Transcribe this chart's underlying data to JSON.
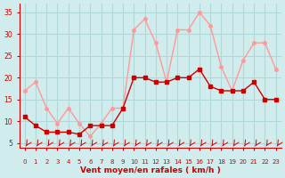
{
  "x": [
    0,
    1,
    2,
    3,
    4,
    5,
    6,
    7,
    8,
    9,
    10,
    11,
    12,
    13,
    14,
    15,
    16,
    17,
    18,
    19,
    20,
    21,
    22,
    23
  ],
  "y_avg": [
    11,
    9,
    7.5,
    7.5,
    7.5,
    7,
    9,
    9,
    9,
    13,
    20,
    20,
    19,
    19,
    20,
    20,
    22,
    18,
    17,
    17,
    17,
    19,
    15,
    15
  ],
  "y_gust": [
    17,
    19,
    13,
    9.5,
    13,
    9.5,
    6.5,
    9.5,
    13,
    13,
    31,
    33.5,
    28,
    19,
    31,
    31,
    35,
    32,
    22.5,
    17,
    24,
    28,
    28,
    22
  ],
  "bg_color": "#d0ecec",
  "grid_color": "#b0d8d8",
  "line_avg_color": "#cc0000",
  "line_gust_color": "#ff9999",
  "marker_avg_color": "#cc0000",
  "marker_gust_color": "#ff9999",
  "xlabel": "Vent moyen/en rafales ( km/h )",
  "xlabel_color": "#cc0000",
  "tick_color": "#cc0000",
  "arrow_color": "#cc0000",
  "ylim": [
    4,
    37
  ],
  "xlim": [
    -0.5,
    23.5
  ],
  "yticks": [
    5,
    10,
    15,
    20,
    25,
    30,
    35
  ],
  "xticks": [
    0,
    1,
    2,
    3,
    4,
    5,
    6,
    7,
    8,
    9,
    10,
    11,
    12,
    13,
    14,
    15,
    16,
    17,
    18,
    19,
    20,
    21,
    22,
    23
  ],
  "spine_color": "#cc0000",
  "fig_bg": "#d0ecec"
}
